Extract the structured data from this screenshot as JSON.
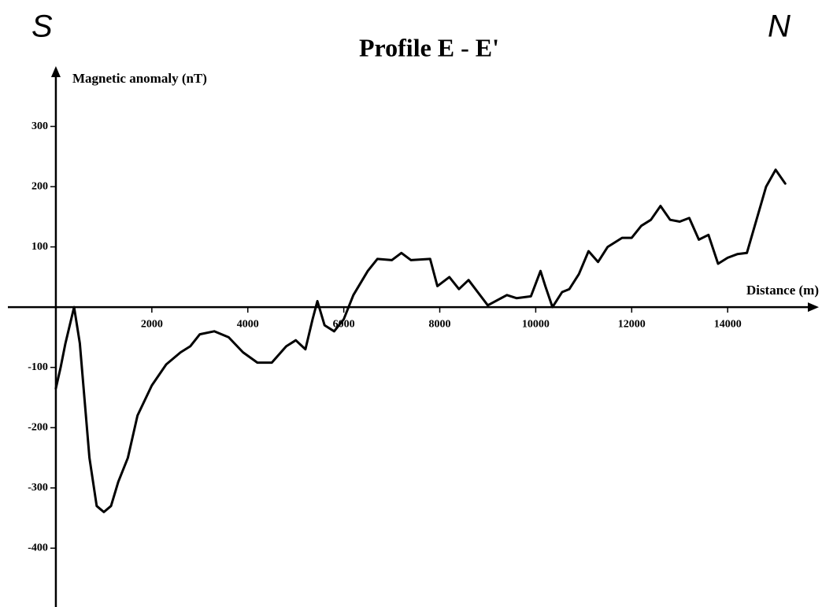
{
  "chart_data": {
    "type": "line",
    "title": "Profile E - E'",
    "y_label": "Magnetic anomaly (nT)",
    "x_label": "Distance (m)",
    "annotations": [
      "S",
      "N"
    ],
    "color": "#000000",
    "xlim": [
      -1000,
      15900
    ],
    "ylim": [
      -495,
      400
    ],
    "xticks": [
      2000,
      4000,
      6000,
      8000,
      10000,
      12000,
      14000
    ],
    "yticks": [
      -400,
      -300,
      -200,
      -100,
      100,
      200,
      300
    ],
    "x": [
      0,
      100,
      200,
      380,
      500,
      700,
      850,
      1000,
      1150,
      1300,
      1500,
      1700,
      2000,
      2300,
      2600,
      2800,
      3000,
      3300,
      3600,
      3900,
      4200,
      4500,
      4800,
      5000,
      5200,
      5350,
      5450,
      5600,
      5800,
      6000,
      6200,
      6500,
      6700,
      7000,
      7200,
      7400,
      7800,
      7950,
      8200,
      8400,
      8600,
      9000,
      9400,
      9600,
      9900,
      10100,
      10200,
      10350,
      10550,
      10700,
      10900,
      11100,
      11300,
      11500,
      11800,
      12000,
      12200,
      12400,
      12600,
      12800,
      13000,
      13200,
      13400,
      13600,
      13800,
      14000,
      14200,
      14400,
      14600,
      14800,
      15000,
      15200
    ],
    "values": [
      -135,
      -100,
      -60,
      0,
      -60,
      -250,
      -330,
      -340,
      -330,
      -290,
      -250,
      -180,
      -130,
      -95,
      -75,
      -65,
      -45,
      -40,
      -50,
      -75,
      -92,
      -92,
      -65,
      -55,
      -70,
      -20,
      10,
      -30,
      -40,
      -20,
      20,
      60,
      80,
      78,
      90,
      78,
      80,
      35,
      50,
      30,
      45,
      3,
      20,
      15,
      18,
      60,
      35,
      0,
      25,
      30,
      55,
      93,
      75,
      100,
      115,
      115,
      135,
      145,
      168,
      145,
      142,
      148,
      112,
      120,
      72,
      82,
      88,
      90,
      145,
      200,
      228,
      205
    ]
  }
}
